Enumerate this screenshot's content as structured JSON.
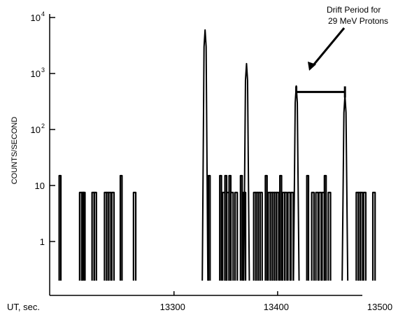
{
  "chart_data": {
    "type": "line",
    "title": "",
    "ylabel": "COUNTS/SECOND",
    "x_axis_label": "UT, sec.",
    "y_scale": "log",
    "xlim": [
      13180,
      13500
    ],
    "ylim": [
      0.2,
      10000
    ],
    "x_ticks": [
      {
        "value": 13300,
        "label": "13300"
      },
      {
        "value": 13400,
        "label": "13400"
      },
      {
        "value": 13500,
        "label": "13500"
      }
    ],
    "y_ticks": [
      {
        "value": 1,
        "base": "1",
        "exp": ""
      },
      {
        "value": 10,
        "base": "10",
        "exp": ""
      },
      {
        "value": 100,
        "base": "10",
        "exp": "2"
      },
      {
        "value": 1000,
        "base": "10",
        "exp": "3"
      },
      {
        "value": 10000,
        "base": "10",
        "exp": "4"
      }
    ],
    "grid": false,
    "background_level": 0.2,
    "series": [
      {
        "color": "#000000",
        "spikes": [
          {
            "x": 13190,
            "y": 15
          },
          {
            "x": 13210,
            "y": 7.5
          },
          {
            "x": 13212,
            "y": 7.5
          },
          {
            "x": 13213,
            "y": 7.5
          },
          {
            "x": 13222,
            "y": 7.5
          },
          {
            "x": 13224,
            "y": 7.5
          },
          {
            "x": 13234,
            "y": 7.5
          },
          {
            "x": 13236,
            "y": 7.5
          },
          {
            "x": 13238,
            "y": 7.5
          },
          {
            "x": 13241,
            "y": 7.5
          },
          {
            "x": 13249,
            "y": 15
          },
          {
            "x": 13262,
            "y": 7.5
          },
          {
            "x": 13330,
            "y": 6000
          },
          {
            "x": 13334,
            "y": 15
          },
          {
            "x": 13345,
            "y": 15
          },
          {
            "x": 13348,
            "y": 7.5
          },
          {
            "x": 13350,
            "y": 15
          },
          {
            "x": 13352,
            "y": 7.5
          },
          {
            "x": 13354,
            "y": 15
          },
          {
            "x": 13356,
            "y": 7.5
          },
          {
            "x": 13360,
            "y": 7.5
          },
          {
            "x": 13365,
            "y": 15
          },
          {
            "x": 13368,
            "y": 7.5
          },
          {
            "x": 13370,
            "y": 1500
          },
          {
            "x": 13378,
            "y": 7.5
          },
          {
            "x": 13380,
            "y": 7.5
          },
          {
            "x": 13382,
            "y": 7.5
          },
          {
            "x": 13384,
            "y": 7.5
          },
          {
            "x": 13389,
            "y": 15
          },
          {
            "x": 13392,
            "y": 7.5
          },
          {
            "x": 13394,
            "y": 7.5
          },
          {
            "x": 13396,
            "y": 7.5
          },
          {
            "x": 13398,
            "y": 7.5
          },
          {
            "x": 13400,
            "y": 7.5
          },
          {
            "x": 13403,
            "y": 15
          },
          {
            "x": 13406,
            "y": 7.5
          },
          {
            "x": 13408,
            "y": 7.5
          },
          {
            "x": 13411,
            "y": 7.5
          },
          {
            "x": 13414,
            "y": 7.5
          },
          {
            "x": 13418,
            "y": 600
          },
          {
            "x": 13429,
            "y": 15
          },
          {
            "x": 13434,
            "y": 7.5
          },
          {
            "x": 13438,
            "y": 7.5
          },
          {
            "x": 13441,
            "y": 7.5
          },
          {
            "x": 13444,
            "y": 7.5
          },
          {
            "x": 13446,
            "y": 15
          },
          {
            "x": 13450,
            "y": 7.5
          },
          {
            "x": 13465,
            "y": 400
          },
          {
            "x": 13477,
            "y": 7.5
          },
          {
            "x": 13479,
            "y": 7.5
          },
          {
            "x": 13481,
            "y": 7.5
          },
          {
            "x": 13484,
            "y": 7.5
          },
          {
            "x": 13493,
            "y": 7.5
          }
        ]
      }
    ],
    "annotation": {
      "lines": [
        "Drift Period for",
        "29 MeV Protons"
      ],
      "bracket": {
        "x_start": 13418,
        "x_end": 13465,
        "y": 700
      }
    }
  }
}
